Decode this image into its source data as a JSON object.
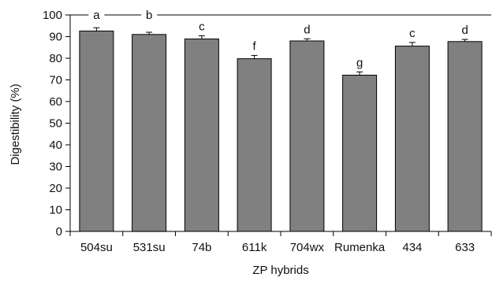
{
  "chart_data": {
    "type": "bar",
    "title": "",
    "xlabel": "ZP hybrids",
    "ylabel": "Digestibility (%)",
    "ylim": [
      0,
      100
    ],
    "yticks": [
      0,
      10,
      20,
      30,
      40,
      50,
      60,
      70,
      80,
      90,
      100
    ],
    "grid": false,
    "legend": "none",
    "bar_color": "#808080",
    "categories": [
      "504su",
      "531su",
      "74b",
      "611k",
      "704wx",
      "Rumenka",
      "434",
      "633"
    ],
    "values": [
      92.6,
      91.0,
      88.9,
      79.8,
      88.0,
      72.2,
      85.6,
      87.7
    ],
    "errors": [
      1.5,
      1.0,
      1.5,
      1.5,
      1.0,
      1.5,
      1.7,
      1.0
    ],
    "significance_letters": [
      "a",
      "b",
      "c",
      "f",
      "d",
      "g",
      "c",
      "d"
    ]
  }
}
